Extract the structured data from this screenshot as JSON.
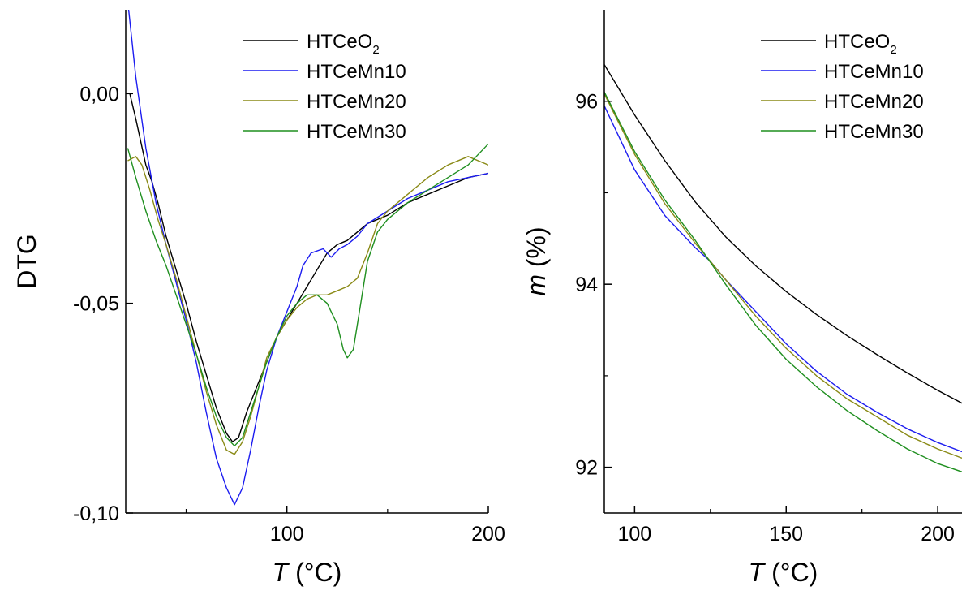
{
  "chart_data": [
    {
      "type": "line",
      "ylabel": "DTG",
      "xlabel_var": "T",
      "xlabel_unit": " (°C)",
      "xlim": [
        20,
        200
      ],
      "ylim": [
        -0.1,
        0.02
      ],
      "xticks": [
        {
          "v": 100,
          "label": "100"
        },
        {
          "v": 200,
          "label": "200"
        }
      ],
      "x_minor_ticks": [
        50,
        150
      ],
      "yticks": [
        {
          "v": 0.0,
          "label": "0,00"
        },
        {
          "v": -0.05,
          "label": "-0,05"
        },
        {
          "v": -0.1,
          "label": "-0,10"
        }
      ],
      "legend_position": "top-right",
      "series": [
        {
          "name": "HTCeO",
          "sub": "2",
          "color": "#000000",
          "points": [
            [
              22,
              0.0
            ],
            [
              25,
              -0.006
            ],
            [
              30,
              -0.017
            ],
            [
              33,
              -0.021
            ],
            [
              36,
              -0.026
            ],
            [
              40,
              -0.034
            ],
            [
              45,
              -0.042
            ],
            [
              50,
              -0.05
            ],
            [
              55,
              -0.059
            ],
            [
              60,
              -0.067
            ],
            [
              65,
              -0.075
            ],
            [
              70,
              -0.081
            ],
            [
              73,
              -0.083
            ],
            [
              76,
              -0.082
            ],
            [
              80,
              -0.076
            ],
            [
              85,
              -0.07
            ],
            [
              90,
              -0.064
            ],
            [
              95,
              -0.058
            ],
            [
              100,
              -0.054
            ],
            [
              105,
              -0.05
            ],
            [
              110,
              -0.046
            ],
            [
              115,
              -0.042
            ],
            [
              120,
              -0.038
            ],
            [
              125,
              -0.036
            ],
            [
              130,
              -0.035
            ],
            [
              135,
              -0.033
            ],
            [
              140,
              -0.031
            ],
            [
              150,
              -0.029
            ],
            [
              160,
              -0.026
            ],
            [
              170,
              -0.024
            ],
            [
              180,
              -0.022
            ],
            [
              190,
              -0.02
            ],
            [
              200,
              -0.019
            ]
          ]
        },
        {
          "name": "HTCeMn10",
          "sub": "",
          "color": "#1c1cf0",
          "points": [
            [
              21,
              0.022
            ],
            [
              25,
              0.004
            ],
            [
              30,
              -0.013
            ],
            [
              35,
              -0.026
            ],
            [
              40,
              -0.036
            ],
            [
              45,
              -0.045
            ],
            [
              50,
              -0.054
            ],
            [
              55,
              -0.064
            ],
            [
              60,
              -0.076
            ],
            [
              65,
              -0.087
            ],
            [
              70,
              -0.094
            ],
            [
              74,
              -0.098
            ],
            [
              78,
              -0.094
            ],
            [
              82,
              -0.085
            ],
            [
              86,
              -0.075
            ],
            [
              90,
              -0.066
            ],
            [
              95,
              -0.058
            ],
            [
              100,
              -0.052
            ],
            [
              105,
              -0.046
            ],
            [
              108,
              -0.041
            ],
            [
              112,
              -0.038
            ],
            [
              118,
              -0.037
            ],
            [
              122,
              -0.039
            ],
            [
              126,
              -0.037
            ],
            [
              130,
              -0.036
            ],
            [
              135,
              -0.034
            ],
            [
              140,
              -0.031
            ],
            [
              150,
              -0.028
            ],
            [
              160,
              -0.025
            ],
            [
              170,
              -0.023
            ],
            [
              180,
              -0.021
            ],
            [
              190,
              -0.02
            ],
            [
              200,
              -0.019
            ]
          ]
        },
        {
          "name": "HTCeMn20",
          "sub": "",
          "color": "#8a8a16",
          "points": [
            [
              21,
              -0.016
            ],
            [
              25,
              -0.015
            ],
            [
              28,
              -0.017
            ],
            [
              32,
              -0.023
            ],
            [
              36,
              -0.03
            ],
            [
              40,
              -0.036
            ],
            [
              45,
              -0.044
            ],
            [
              50,
              -0.053
            ],
            [
              55,
              -0.062
            ],
            [
              60,
              -0.071
            ],
            [
              65,
              -0.079
            ],
            [
              70,
              -0.085
            ],
            [
              74,
              -0.086
            ],
            [
              78,
              -0.083
            ],
            [
              82,
              -0.077
            ],
            [
              86,
              -0.07
            ],
            [
              90,
              -0.063
            ],
            [
              95,
              -0.058
            ],
            [
              100,
              -0.054
            ],
            [
              105,
              -0.051
            ],
            [
              110,
              -0.049
            ],
            [
              115,
              -0.048
            ],
            [
              120,
              -0.048
            ],
            [
              125,
              -0.047
            ],
            [
              130,
              -0.046
            ],
            [
              135,
              -0.044
            ],
            [
              140,
              -0.038
            ],
            [
              145,
              -0.031
            ],
            [
              150,
              -0.028
            ],
            [
              160,
              -0.024
            ],
            [
              170,
              -0.02
            ],
            [
              180,
              -0.017
            ],
            [
              190,
              -0.015
            ],
            [
              200,
              -0.017
            ]
          ]
        },
        {
          "name": "HTCeMn30",
          "sub": "",
          "color": "#1f8f1f",
          "points": [
            [
              21,
              -0.013
            ],
            [
              25,
              -0.02
            ],
            [
              30,
              -0.028
            ],
            [
              35,
              -0.035
            ],
            [
              40,
              -0.041
            ],
            [
              45,
              -0.048
            ],
            [
              50,
              -0.055
            ],
            [
              55,
              -0.062
            ],
            [
              60,
              -0.07
            ],
            [
              65,
              -0.077
            ],
            [
              70,
              -0.082
            ],
            [
              74,
              -0.084
            ],
            [
              78,
              -0.082
            ],
            [
              82,
              -0.076
            ],
            [
              86,
              -0.07
            ],
            [
              90,
              -0.064
            ],
            [
              95,
              -0.058
            ],
            [
              100,
              -0.053
            ],
            [
              105,
              -0.05
            ],
            [
              110,
              -0.048
            ],
            [
              115,
              -0.048
            ],
            [
              120,
              -0.05
            ],
            [
              125,
              -0.055
            ],
            [
              128,
              -0.061
            ],
            [
              130,
              -0.063
            ],
            [
              133,
              -0.061
            ],
            [
              136,
              -0.052
            ],
            [
              140,
              -0.04
            ],
            [
              145,
              -0.033
            ],
            [
              150,
              -0.03
            ],
            [
              160,
              -0.026
            ],
            [
              170,
              -0.023
            ],
            [
              180,
              -0.02
            ],
            [
              190,
              -0.017
            ],
            [
              200,
              -0.012
            ]
          ]
        }
      ]
    },
    {
      "type": "line",
      "ylabel_var": "m",
      "ylabel_unit": " (%)",
      "xlabel_var": "T",
      "xlabel_unit": " (°C)",
      "xlim": [
        90,
        208
      ],
      "ylim": [
        91.5,
        97.0
      ],
      "xticks": [
        {
          "v": 100,
          "label": "100"
        },
        {
          "v": 150,
          "label": "150"
        },
        {
          "v": 200,
          "label": "200"
        }
      ],
      "x_minor_ticks": [
        125,
        175
      ],
      "yticks": [
        {
          "v": 96,
          "label": "96"
        },
        {
          "v": 94,
          "label": "94"
        },
        {
          "v": 92,
          "label": "92"
        }
      ],
      "y_minor_ticks": [
        95,
        93
      ],
      "legend_position": "top-right",
      "series": [
        {
          "name": "HTCeO",
          "sub": "2",
          "color": "#000000",
          "points": [
            [
              90,
              96.4
            ],
            [
              100,
              95.85
            ],
            [
              110,
              95.35
            ],
            [
              120,
              94.9
            ],
            [
              130,
              94.52
            ],
            [
              140,
              94.2
            ],
            [
              150,
              93.92
            ],
            [
              160,
              93.67
            ],
            [
              170,
              93.44
            ],
            [
              180,
              93.23
            ],
            [
              190,
              93.03
            ],
            [
              200,
              92.84
            ],
            [
              208,
              92.7
            ]
          ]
        },
        {
          "name": "HTCeMn10",
          "sub": "",
          "color": "#1c1cf0",
          "points": [
            [
              90,
              95.95
            ],
            [
              100,
              95.25
            ],
            [
              110,
              94.75
            ],
            [
              120,
              94.4
            ],
            [
              125,
              94.25
            ],
            [
              130,
              94.05
            ],
            [
              140,
              93.7
            ],
            [
              150,
              93.35
            ],
            [
              160,
              93.05
            ],
            [
              170,
              92.8
            ],
            [
              180,
              92.6
            ],
            [
              190,
              92.42
            ],
            [
              200,
              92.27
            ],
            [
              208,
              92.17
            ]
          ]
        },
        {
          "name": "HTCeMn20",
          "sub": "",
          "color": "#8a8a16",
          "points": [
            [
              90,
              96.08
            ],
            [
              100,
              95.42
            ],
            [
              110,
              94.88
            ],
            [
              120,
              94.45
            ],
            [
              130,
              94.05
            ],
            [
              140,
              93.65
            ],
            [
              150,
              93.3
            ],
            [
              160,
              93.0
            ],
            [
              170,
              92.75
            ],
            [
              180,
              92.55
            ],
            [
              190,
              92.35
            ],
            [
              200,
              92.2
            ],
            [
              208,
              92.1
            ]
          ]
        },
        {
          "name": "HTCeMn30",
          "sub": "",
          "color": "#1f8f1f",
          "points": [
            [
              90,
              96.1
            ],
            [
              100,
              95.45
            ],
            [
              110,
              94.92
            ],
            [
              120,
              94.48
            ],
            [
              130,
              94.0
            ],
            [
              140,
              93.55
            ],
            [
              150,
              93.18
            ],
            [
              160,
              92.88
            ],
            [
              170,
              92.62
            ],
            [
              180,
              92.4
            ],
            [
              190,
              92.2
            ],
            [
              200,
              92.04
            ],
            [
              208,
              91.95
            ]
          ]
        }
      ]
    }
  ]
}
